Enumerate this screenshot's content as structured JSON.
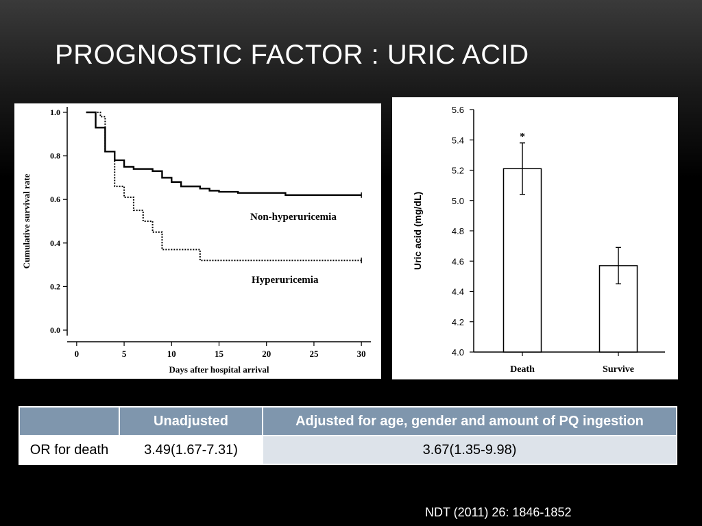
{
  "slide": {
    "title": "PROGNOSTIC FACTOR : URIC ACID",
    "citation": "NDT (2011) 26: 1846-1852"
  },
  "table": {
    "headers": [
      "",
      "Unadjusted",
      "Adjusted for age, gender and  amount of PQ ingestion"
    ],
    "rows": [
      [
        "OR for death",
        "3.49(1.67-7.31)",
        "3.67(1.35-9.98)"
      ]
    ]
  },
  "chart_data": [
    {
      "type": "line",
      "style": "step",
      "xlabel": "Days after hospital arrival",
      "ylabel": "Cumulative survival rate",
      "xlim": [
        -1,
        31
      ],
      "ylim": [
        0,
        1.0
      ],
      "xticks": [
        0,
        5,
        10,
        15,
        20,
        25,
        30
      ],
      "xtick_labels": [
        "0",
        "5",
        "10",
        "15",
        "20",
        "25",
        "30"
      ],
      "yticks": [
        0.0,
        0.2,
        0.4,
        0.6,
        0.8,
        1.0
      ],
      "ytick_labels": [
        "0.0",
        "0.2",
        "0.4",
        "0.6",
        "0.8",
        "1.0"
      ],
      "grid": false,
      "series": [
        {
          "name": "Non-hyperuricemia",
          "line": "solid",
          "x": [
            1,
            2,
            3,
            4,
            5,
            6,
            8,
            9,
            10,
            11,
            13,
            14,
            15,
            17,
            22,
            30
          ],
          "y": [
            1.0,
            0.93,
            0.82,
            0.78,
            0.75,
            0.74,
            0.73,
            0.7,
            0.68,
            0.66,
            0.65,
            0.64,
            0.635,
            0.63,
            0.62,
            0.62
          ]
        },
        {
          "name": "Hyperuricemia",
          "line": "dotted",
          "x": [
            1,
            2.5,
            3,
            4,
            5,
            6,
            7,
            8,
            9,
            13,
            30
          ],
          "y": [
            1.0,
            0.98,
            0.82,
            0.66,
            0.61,
            0.55,
            0.5,
            0.45,
            0.37,
            0.32,
            0.32
          ]
        }
      ]
    },
    {
      "type": "bar",
      "categories": [
        "Death",
        "Survive"
      ],
      "values": [
        5.21,
        4.57
      ],
      "error": [
        0.17,
        0.12
      ],
      "ylabel": "Uric  acid (mg/dL)",
      "ylim": [
        4.0,
        5.6
      ],
      "yticks": [
        4.0,
        4.2,
        4.4,
        4.6,
        4.8,
        5.0,
        5.2,
        5.4,
        5.6
      ],
      "ytick_labels": [
        "4.0",
        "4.2",
        "4.4",
        "4.6",
        "4.8",
        "5.0",
        "5.2",
        "5.4",
        "5.6"
      ],
      "annotations": [
        {
          "category": "Death",
          "text": "*"
        }
      ],
      "grid": false
    }
  ]
}
